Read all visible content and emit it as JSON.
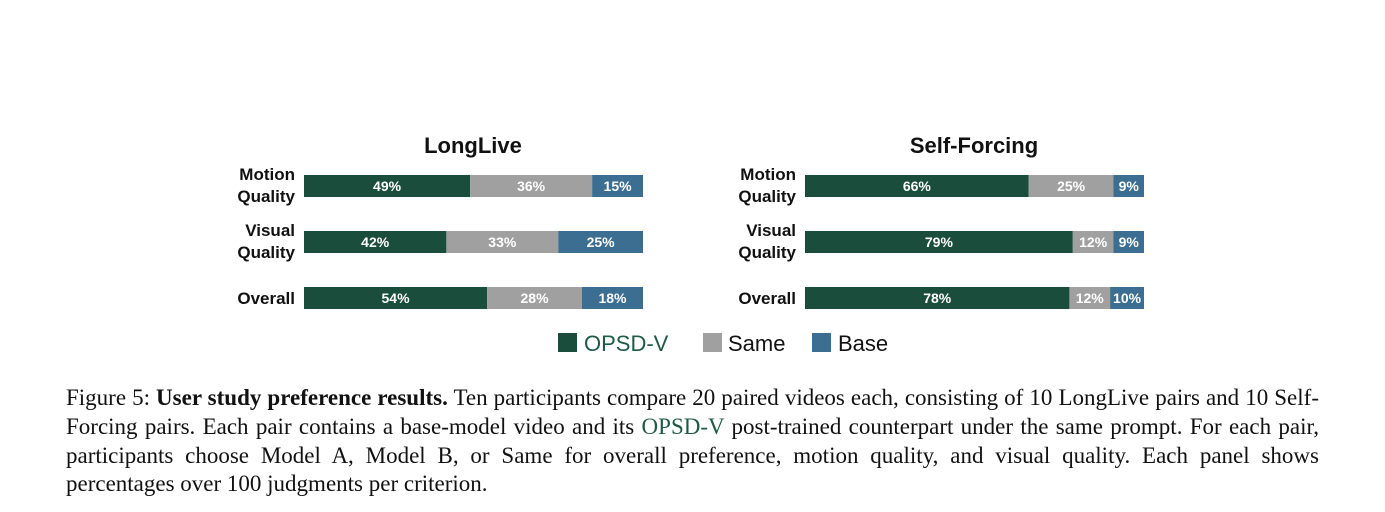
{
  "chart_data": [
    {
      "type": "bar",
      "orientation": "horizontal",
      "stacked": true,
      "normalized": true,
      "title": "LongLive",
      "categories": [
        "Motion Quality",
        "Visual Quality",
        "Overall"
      ],
      "category_lines": [
        [
          "Motion",
          "Quality"
        ],
        [
          "Visual",
          "Quality"
        ],
        [
          "Overall"
        ]
      ],
      "series": [
        {
          "name": "OPSD-V",
          "values": [
            49,
            42,
            54
          ],
          "labels": [
            "49%",
            "42%",
            "54%"
          ]
        },
        {
          "name": "Same",
          "values": [
            36,
            33,
            28
          ],
          "labels": [
            "36%",
            "33%",
            "28%"
          ]
        },
        {
          "name": "Base",
          "values": [
            15,
            25,
            18
          ],
          "labels": [
            "15%",
            "25%",
            "18%"
          ]
        }
      ],
      "xlim": [
        0,
        100
      ]
    },
    {
      "type": "bar",
      "orientation": "horizontal",
      "stacked": true,
      "normalized": true,
      "title": "Self-Forcing",
      "categories": [
        "Motion Quality",
        "Visual Quality",
        "Overall"
      ],
      "category_lines": [
        [
          "Motion",
          "Quality"
        ],
        [
          "Visual",
          "Quality"
        ],
        [
          "Overall"
        ]
      ],
      "series": [
        {
          "name": "OPSD-V",
          "values": [
            66,
            79,
            78
          ],
          "labels": [
            "66%",
            "79%",
            "78%"
          ]
        },
        {
          "name": "Same",
          "values": [
            25,
            12,
            12
          ],
          "labels": [
            "25%",
            "12%",
            "12%"
          ]
        },
        {
          "name": "Base",
          "values": [
            9,
            9,
            10
          ],
          "labels": [
            "9%",
            "9%",
            "10%"
          ]
        }
      ],
      "xlim": [
        0,
        100
      ]
    }
  ],
  "legend": {
    "placement": "bottom-center",
    "items": [
      {
        "label": "OPSD-V",
        "color": "#1a4d3c"
      },
      {
        "label": "Same",
        "color": "#a0a0a0"
      },
      {
        "label": "Base",
        "color": "#3b6e91"
      }
    ]
  },
  "colors": {
    "opsd": "#1a4d3c",
    "same": "#a0a0a0",
    "base": "#3b6e91",
    "accent_text": "#1e5a44"
  },
  "caption": {
    "prefix": "Figure 5: ",
    "bold": "User study preference results.",
    "part1": " Ten participants compare 20 paired videos each, consisting of 10 LongLive pairs and 10 Self-Forcing pairs. Each pair contains a base-model video and its ",
    "accent": "OPSD-V",
    "part2": " post-trained counterpart under the same prompt. For each pair, participants choose Model A, Model B, or Same for overall preference, motion quality, and visual quality. Each panel shows percentages over 100 judgments per criterion."
  }
}
